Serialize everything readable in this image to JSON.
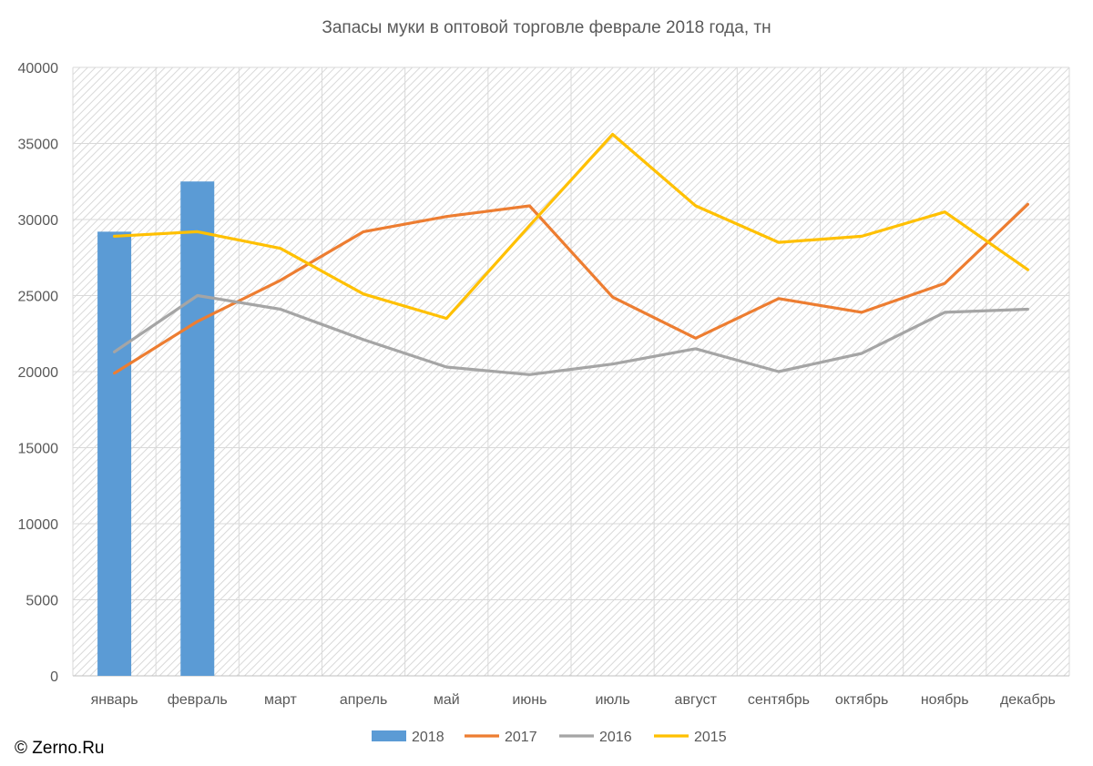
{
  "chart_data": {
    "type": "bar+line",
    "title": "Запасы муки в оптовой торговле феврале 2018 года, тн",
    "categories": [
      "январь",
      "февраль",
      "март",
      "апрель",
      "май",
      "июнь",
      "июль",
      "август",
      "сентябрь",
      "октябрь",
      "ноябрь",
      "декабрь"
    ],
    "ylim": [
      0,
      40000
    ],
    "yticks": [
      0,
      5000,
      10000,
      15000,
      20000,
      25000,
      30000,
      35000,
      40000
    ],
    "grid": true,
    "legend_position": "bottom",
    "series": [
      {
        "name": "2018",
        "kind": "bar",
        "color": "#5B9BD5",
        "values": [
          29200,
          32500,
          null,
          null,
          null,
          null,
          null,
          null,
          null,
          null,
          null,
          null
        ]
      },
      {
        "name": "2017",
        "kind": "line",
        "color": "#ED7D31",
        "values": [
          19900,
          23300,
          26000,
          29200,
          30200,
          30900,
          24900,
          22200,
          24800,
          23900,
          25800,
          31000
        ]
      },
      {
        "name": "2016",
        "kind": "line",
        "color": "#A5A5A5",
        "values": [
          21300,
          25000,
          24100,
          22100,
          20300,
          19800,
          20500,
          21500,
          20000,
          21200,
          23900,
          24100
        ]
      },
      {
        "name": "2015",
        "kind": "line",
        "color": "#FFC000",
        "values": [
          28900,
          29200,
          28100,
          25100,
          23500,
          29600,
          35600,
          30900,
          28500,
          28900,
          30500,
          26700
        ]
      }
    ]
  },
  "footer": {
    "copyright": "© Zerno.Ru"
  }
}
